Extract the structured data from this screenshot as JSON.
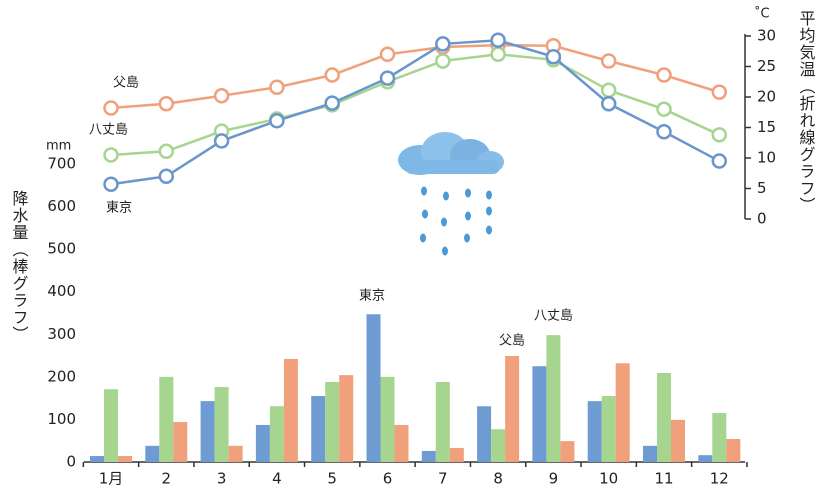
{
  "chart_data": {
    "type": "bar-line",
    "y_label": "降水量（棒グラフ）",
    "y_unit": "mm",
    "y2_label": "平均気温（折れ線グラフ）",
    "y2_unit": "˚C",
    "categories": [
      "1月",
      "2",
      "3",
      "4",
      "5",
      "6",
      "7",
      "8",
      "9",
      "10",
      "11",
      "12"
    ],
    "ylim": [
      0,
      700
    ],
    "yticks": [
      0,
      100,
      200,
      300,
      400,
      500,
      600,
      700
    ],
    "y2lim": [
      0,
      30
    ],
    "y2ticks": [
      0,
      5,
      10,
      15,
      20,
      25,
      30
    ],
    "bar_series": [
      {
        "name": "東京",
        "color": "#6f9bd3",
        "values": [
          14,
          38,
          143,
          87,
          155,
          347,
          26,
          131,
          225,
          143,
          38,
          16
        ]
      },
      {
        "name": "八丈島",
        "color": "#a6d58f",
        "values": [
          171,
          200,
          176,
          131,
          188,
          200,
          188,
          77,
          298,
          155,
          209,
          115
        ]
      },
      {
        "name": "父島",
        "color": "#f0a07a",
        "values": [
          14,
          94,
          38,
          242,
          204,
          87,
          33,
          249,
          49,
          232,
          99,
          54
        ]
      }
    ],
    "line_series": [
      {
        "name": "父島",
        "color": "#f0a07a",
        "axis": "y2",
        "values": [
          18.2,
          18.9,
          20.2,
          21.6,
          23.6,
          27.0,
          28.2,
          28.5,
          28.4,
          25.9,
          23.6,
          20.8
        ]
      },
      {
        "name": "八丈島",
        "color": "#a6d58f",
        "axis": "y2",
        "values": [
          10.5,
          11.1,
          14.4,
          16.4,
          18.7,
          22.5,
          25.9,
          27.0,
          26.1,
          21.1,
          18.0,
          13.8
        ]
      },
      {
        "name": "東京",
        "color": "#6b96cc",
        "axis": "y2",
        "values": [
          5.7,
          7.0,
          12.8,
          16.1,
          19.0,
          23.1,
          28.7,
          29.3,
          26.6,
          18.9,
          14.3,
          9.5
        ]
      }
    ]
  }
}
